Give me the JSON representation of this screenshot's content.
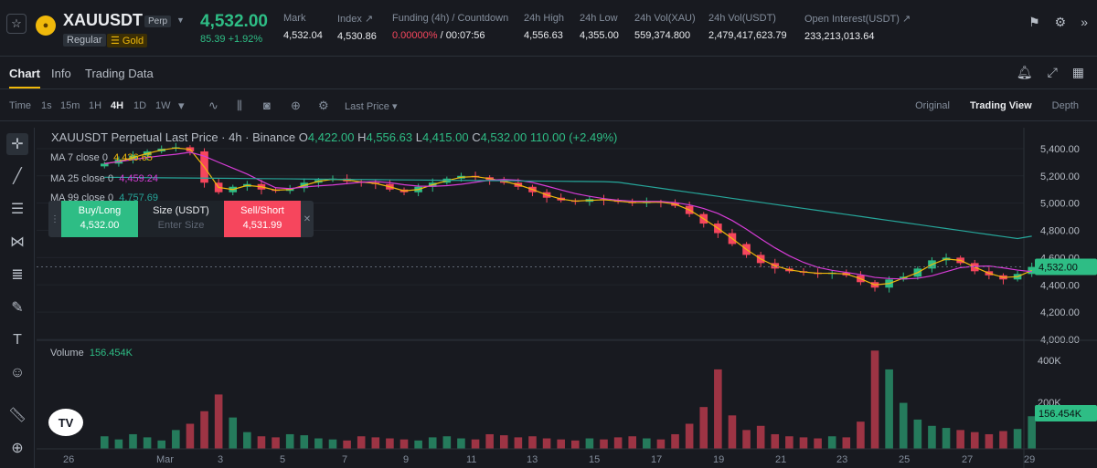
{
  "header": {
    "symbol": "XAUUSDT",
    "perp_badge": "Perp",
    "regular_badge": "Regular",
    "gold_badge": "Gold",
    "price": "4,532.00",
    "change": "85.39 +1.92%",
    "stats": [
      {
        "label": "Mark",
        "value": "4,532.04"
      },
      {
        "label": "Index ↗",
        "value": "4,530.86"
      },
      {
        "label": "Funding (4h) / Countdown",
        "value_red": "0.00000%",
        "value": " / 00:07:56"
      },
      {
        "label": "24h High",
        "value": "4,556.63"
      },
      {
        "label": "24h Low",
        "value": "4,355.00"
      },
      {
        "label": "24h Vol(XAU)",
        "value": "559,374.800"
      },
      {
        "label": "24h Vol(USDT)",
        "value": "2,479,417,623.79"
      },
      {
        "label": "Open Interest(USDT) ↗",
        "value": "233,213,013.64"
      }
    ]
  },
  "tabs": [
    "Chart",
    "Info",
    "Trading Data"
  ],
  "toolbar": {
    "intervals": [
      "Time",
      "1s",
      "15m",
      "1H",
      "4H",
      "1D",
      "1W"
    ],
    "active_interval": "4H",
    "price_type": "Last Price",
    "views": [
      "Original",
      "Trading View",
      "Depth"
    ],
    "active_view": "Trading View"
  },
  "legend": {
    "title": "XAUUSDT Perpetual Last Price · 4h · Binance",
    "o_label": "O",
    "o": "4,422.00",
    "h_label": "H",
    "h": "4,556.63",
    "l_label": "L",
    "l": "4,415.00",
    "c_label": "C",
    "c": "4,532.00",
    "change": "110.00 (+2.49%)",
    "ma7_label": "MA 7 close 0",
    "ma7": "4,436.65",
    "ma25_label": "MA 25 close 0",
    "ma25": "4,459.24",
    "ma99_label": "MA 99 close 0",
    "ma99": "4,757.69",
    "volume_label": "Volume",
    "volume": "156.454K"
  },
  "order": {
    "buy_label": "Buy/Long",
    "buy_price": "4,532.00",
    "size_label": "Size (USDT)",
    "size_placeholder": "Enter Size",
    "sell_label": "Sell/Short",
    "sell_price": "4,531.99"
  },
  "colors": {
    "up": "#2ebd85",
    "down": "#f6465d",
    "ma7": "#f0b90b",
    "ma25": "#d63cd6",
    "ma99": "#26a69a",
    "accent": "#f0b90b"
  },
  "chart_data": {
    "type": "candlestick",
    "ylim": [
      4000,
      5500
    ],
    "y_ticks": [
      "5,400.00",
      "5,200.00",
      "5,000.00",
      "4,800.00",
      "4,600.00",
      "4,400.00",
      "4,200.00",
      "4,000.00"
    ],
    "y_tick_values": [
      5400,
      5200,
      5000,
      4800,
      4600,
      4400,
      4200,
      4000
    ],
    "x_ticks": [
      "26",
      "Mar",
      "3",
      "5",
      "7",
      "9",
      "11",
      "13",
      "15",
      "17",
      "19",
      "21",
      "23",
      "25",
      "27",
      "29"
    ],
    "current_price": "4,532.00",
    "volume_ticks": [
      "400K",
      "200K"
    ],
    "volume_current": "156.454K",
    "candles_close": [
      5290,
      5320,
      5350,
      5380,
      5400,
      5410,
      5380,
      5150,
      5080,
      5120,
      5140,
      5100,
      5090,
      5110,
      5150,
      5170,
      5180,
      5160,
      5150,
      5140,
      5100,
      5080,
      5120,
      5150,
      5180,
      5200,
      5190,
      5170,
      5150,
      5120,
      5080,
      5040,
      5020,
      5010,
      5030,
      5020,
      5010,
      5000,
      5010,
      5005,
      4980,
      4920,
      4850,
      4780,
      4700,
      4620,
      4560,
      4520,
      4500,
      4490,
      4480,
      4490,
      4470,
      4420,
      4380,
      4440,
      4460,
      4520,
      4580,
      4600,
      4560,
      4500,
      4470,
      4440,
      4480,
      4532
    ],
    "ma99_end": 4757.69,
    "volumes": [
      60,
      45,
      70,
      55,
      40,
      90,
      120,
      180,
      260,
      150,
      80,
      60,
      55,
      70,
      65,
      50,
      45,
      40,
      60,
      55,
      50,
      45,
      40,
      55,
      60,
      50,
      45,
      70,
      65,
      55,
      60,
      50,
      45,
      40,
      50,
      45,
      55,
      60,
      50,
      45,
      70,
      120,
      200,
      380,
      160,
      90,
      110,
      70,
      60,
      55,
      50,
      60,
      55,
      130,
      470,
      380,
      220,
      140,
      110,
      100,
      90,
      80,
      70,
      85,
      95,
      156
    ]
  }
}
